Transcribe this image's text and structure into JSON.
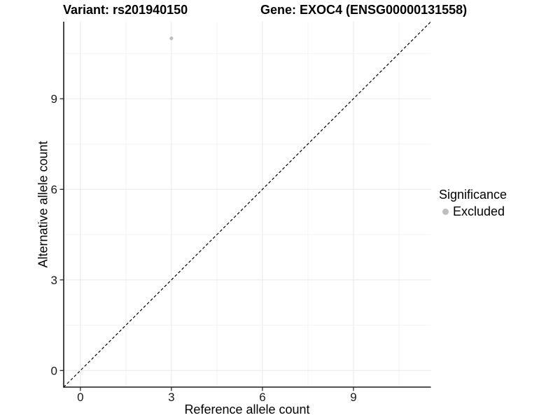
{
  "figure": {
    "title_left": "Variant: rs201940150",
    "title_right": "Gene: EXOC4 (ENSG00000131558)"
  },
  "chart_data": {
    "type": "scatter",
    "xlabel": "Reference allele count",
    "ylabel": "Alternative allele count",
    "xlim": [
      -0.55,
      11.55
    ],
    "ylim": [
      -0.55,
      11.55
    ],
    "x_major_ticks": [
      0,
      3,
      6,
      9
    ],
    "y_major_ticks": [
      0,
      3,
      6,
      9
    ],
    "x_minor_gridlines": [
      1.5,
      4.5,
      7.5,
      10.5
    ],
    "y_minor_gridlines": [
      1.5,
      4.5,
      7.5,
      10.5
    ],
    "grid": "major+minor",
    "points": [
      {
        "x": 3,
        "y": 11,
        "series": "Excluded"
      }
    ],
    "reference_line": {
      "equation": "y = x",
      "style": "dashed",
      "color": "#000000"
    },
    "legend": {
      "title": "Significance",
      "position": "right",
      "items": [
        {
          "label": "Excluded",
          "color": "#bebebe",
          "marker": "dot-icon"
        }
      ]
    },
    "colors": {
      "point": "#bebebe",
      "grid_major": "#e8e8e8",
      "grid_minor": "#f3f3f3",
      "axis_line": "#1a1a1a",
      "text": "#000000",
      "background": "#ffffff"
    }
  }
}
